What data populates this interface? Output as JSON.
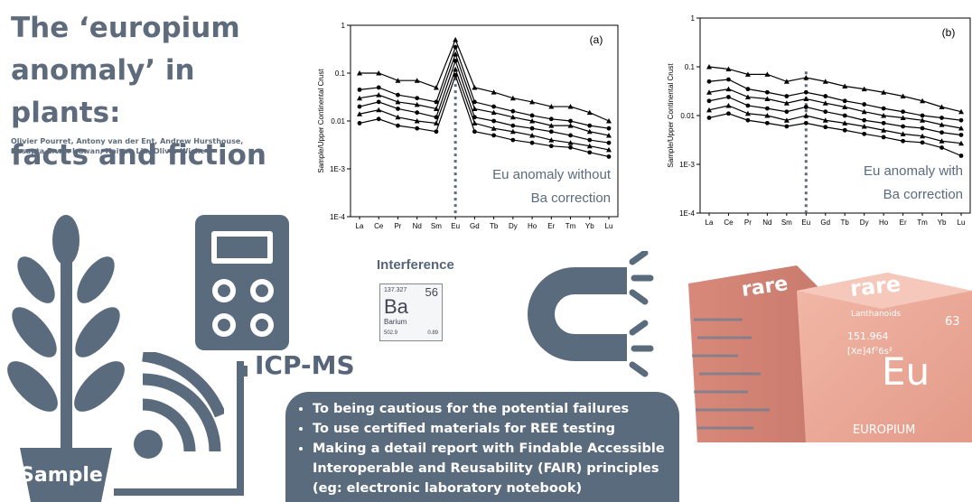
{
  "title": {
    "line1": "The ‘europium",
    "line2": "anomaly’ in plants:",
    "line3": "facts and fiction"
  },
  "authors": {
    "line1": "Olivier Pourret, Antony van der Ent, Andrew Hursthouse,",
    "line2": "Dasapta Erwin Irawan, Haiyan Liu, Oliver Wiche"
  },
  "colors": {
    "slate": "#5b6b7e",
    "rose": "#e8a090"
  },
  "chart_data": [
    {
      "type": "line",
      "panel_label": "(a)",
      "ylabel": "Sample/Upper Continental Crust",
      "yscale": "log",
      "ylim": [
        0.0001,
        1
      ],
      "yticks": [
        "1",
        "0.1",
        "0.01",
        "1E-3",
        "1E-4"
      ],
      "categories": [
        "La",
        "Ce",
        "Pr",
        "Nd",
        "Sm",
        "Eu",
        "Gd",
        "Tb",
        "Dy",
        "Ho",
        "Er",
        "Tm",
        "Yb",
        "Lu"
      ],
      "series": [
        {
          "values": [
            0.1,
            0.1,
            0.07,
            0.07,
            0.05,
            0.5,
            0.05,
            0.04,
            0.03,
            0.025,
            0.02,
            0.02,
            0.015,
            0.01
          ]
        },
        {
          "values": [
            0.045,
            0.05,
            0.035,
            0.03,
            0.025,
            0.35,
            0.025,
            0.02,
            0.016,
            0.013,
            0.011,
            0.01,
            0.008,
            0.007
          ]
        },
        {
          "values": [
            0.03,
            0.035,
            0.025,
            0.022,
            0.018,
            0.25,
            0.018,
            0.015,
            0.012,
            0.01,
            0.008,
            0.008,
            0.006,
            0.005
          ]
        },
        {
          "values": [
            0.02,
            0.025,
            0.018,
            0.015,
            0.012,
            0.18,
            0.012,
            0.01,
            0.008,
            0.007,
            0.006,
            0.005,
            0.004,
            0.0035
          ]
        },
        {
          "values": [
            0.014,
            0.017,
            0.012,
            0.01,
            0.009,
            0.12,
            0.009,
            0.007,
            0.006,
            0.005,
            0.004,
            0.0035,
            0.003,
            0.0025
          ]
        },
        {
          "values": [
            0.009,
            0.011,
            0.008,
            0.007,
            0.006,
            0.09,
            0.006,
            0.005,
            0.004,
            0.0035,
            0.003,
            0.0028,
            0.0022,
            0.0018
          ]
        }
      ],
      "annotation": {
        "line1": "Eu anomaly without",
        "line2": "Ba correction"
      }
    },
    {
      "type": "line",
      "panel_label": "(b)",
      "ylabel": "Sample/Upper Continental Crust",
      "yscale": "log",
      "ylim": [
        0.0001,
        1
      ],
      "yticks": [
        "1",
        "0.1",
        "0.01",
        "1E-3",
        "1E-4"
      ],
      "categories": [
        "La",
        "Ce",
        "Pr",
        "Nd",
        "Sm",
        "Eu",
        "Gd",
        "Tb",
        "Dy",
        "Ho",
        "Er",
        "Tm",
        "Yb",
        "Lu"
      ],
      "series": [
        {
          "values": [
            0.1,
            0.09,
            0.07,
            0.07,
            0.05,
            0.06,
            0.05,
            0.04,
            0.035,
            0.03,
            0.025,
            0.02,
            0.015,
            0.012
          ]
        },
        {
          "values": [
            0.05,
            0.055,
            0.035,
            0.03,
            0.025,
            0.03,
            0.025,
            0.02,
            0.017,
            0.014,
            0.012,
            0.01,
            0.009,
            0.008
          ]
        },
        {
          "values": [
            0.03,
            0.035,
            0.024,
            0.022,
            0.018,
            0.022,
            0.018,
            0.015,
            0.012,
            0.01,
            0.009,
            0.008,
            0.0065,
            0.0055
          ]
        },
        {
          "values": [
            0.02,
            0.024,
            0.016,
            0.014,
            0.012,
            0.015,
            0.012,
            0.01,
            0.008,
            0.007,
            0.006,
            0.0055,
            0.0045,
            0.004
          ]
        },
        {
          "values": [
            0.013,
            0.016,
            0.011,
            0.01,
            0.008,
            0.01,
            0.008,
            0.007,
            0.006,
            0.005,
            0.0042,
            0.0038,
            0.003,
            0.0027
          ]
        },
        {
          "values": [
            0.009,
            0.011,
            0.008,
            0.007,
            0.006,
            0.007,
            0.0058,
            0.005,
            0.0042,
            0.0036,
            0.003,
            0.0028,
            0.0022,
            0.0015
          ]
        }
      ],
      "annotation": {
        "line1": "Eu anomaly with",
        "line2": "Ba correction"
      }
    }
  ],
  "interference_label": "Interference",
  "barium_tile": {
    "mass": "137.327",
    "number": "56",
    "symbol": "Ba",
    "name": "Barium",
    "value_left": "502.9",
    "value_right": "0.89"
  },
  "icp_label": "ICP-MS",
  "sample_label": "Sample",
  "recommendations": [
    "To being cautious for the potential failures",
    "To use certified materials for REE testing",
    "Making a detail report with Findable Accessible Interoperable and Reusability (FAIR) principles (eg: electronic laboratory notebook)"
  ],
  "europium_cube": {
    "top_text": "rare",
    "side_text": "Lanthanoids",
    "number": "63",
    "mass": "151.964",
    "config": "[Xe]4f⁷6s²",
    "symbol": "Eu",
    "name": "EUROPIUM"
  }
}
